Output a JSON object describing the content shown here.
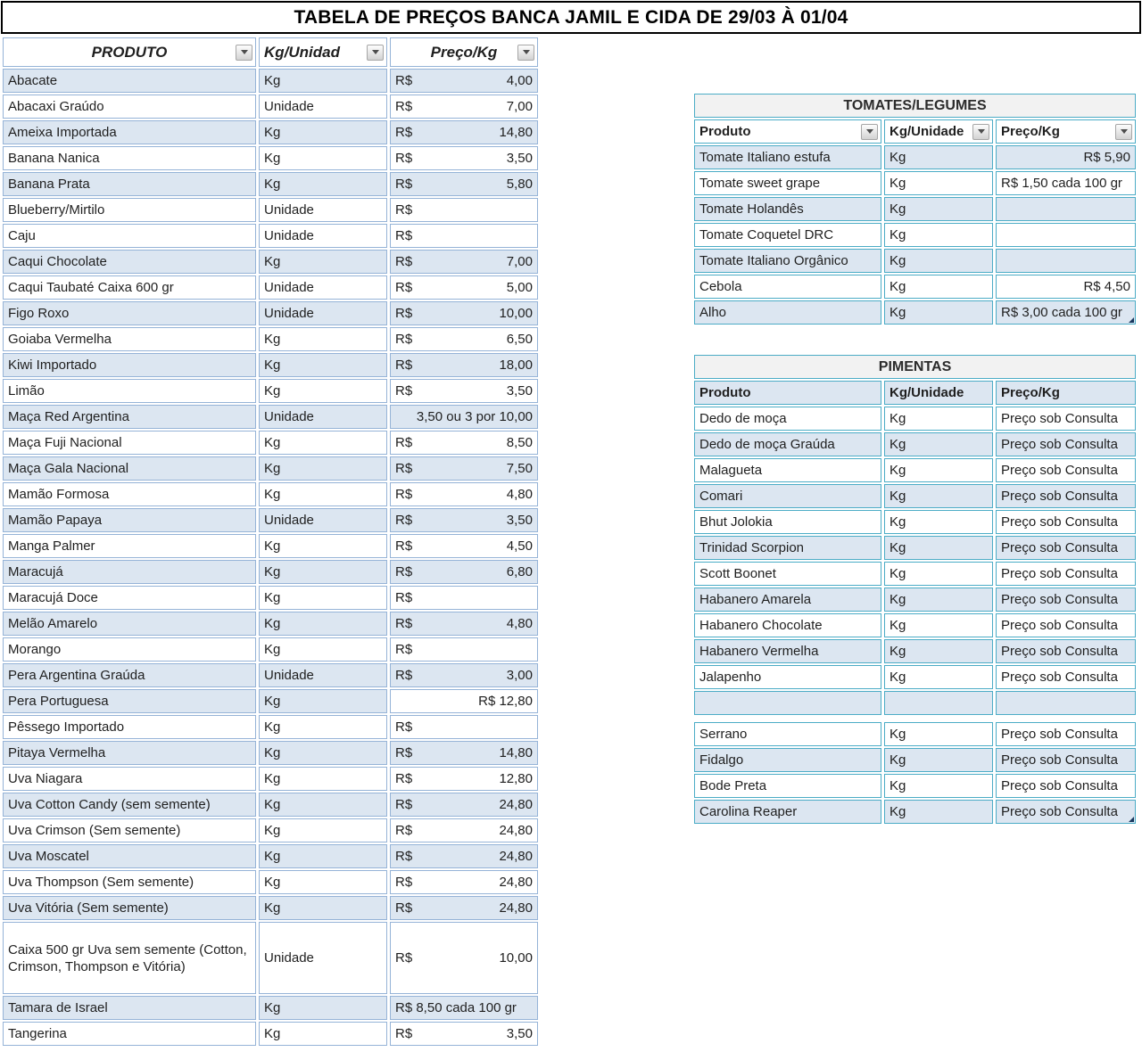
{
  "title": "TABELA DE PREÇOS BANCA JAMIL E CIDA DE 29/03 À 01/04",
  "colors": {
    "band_fill": "#DCE6F1",
    "main_border": "#95B3D7",
    "right_border": "#4BACC6",
    "section_title_bg": "#F2F2F2",
    "title_border": "#000000"
  },
  "main_table": {
    "headers": {
      "product": "PRODUTO",
      "unit": "Kg/Unidad",
      "price": "Preço/Kg"
    },
    "rows": [
      {
        "product": "Abacate",
        "unit": "Kg",
        "cur": "R$",
        "val": "4,00",
        "shaded": true
      },
      {
        "product": "Abacaxi Graúdo",
        "unit": "Unidade",
        "cur": "R$",
        "val": "7,00",
        "shaded": false
      },
      {
        "product": "Ameixa Importada",
        "unit": "Kg",
        "cur": "R$",
        "val": "14,80",
        "shaded": true
      },
      {
        "product": "Banana Nanica",
        "unit": "Kg",
        "cur": "R$",
        "val": "3,50",
        "shaded": false
      },
      {
        "product": "Banana Prata",
        "unit": "Kg",
        "cur": "R$",
        "val": "5,80",
        "shaded": true
      },
      {
        "product": "Blueberry/Mirtilo",
        "unit": "Unidade",
        "cur": "R$",
        "val": "",
        "shaded": false
      },
      {
        "product": "Caju",
        "unit": "Unidade",
        "cur": "R$",
        "val": "",
        "shaded": false
      },
      {
        "product": "Caqui Chocolate",
        "unit": "Kg",
        "cur": "R$",
        "val": "7,00",
        "shaded": true
      },
      {
        "product": "Caqui Taubaté Caixa 600 gr",
        "unit": "Unidade",
        "cur": "R$",
        "val": "5,00",
        "shaded": false
      },
      {
        "product": "Figo Roxo",
        "unit": "Unidade",
        "cur": "R$",
        "val": "10,00",
        "shaded": true
      },
      {
        "product": "Goiaba Vermelha",
        "unit": "Kg",
        "cur": "R$",
        "val": "6,50",
        "shaded": false
      },
      {
        "product": "Kiwi Importado",
        "unit": "Kg",
        "cur": "R$",
        "val": "18,00",
        "shaded": true
      },
      {
        "product": "Limão",
        "unit": "Kg",
        "cur": "R$",
        "val": "3,50",
        "shaded": false
      },
      {
        "product": "Maça Red Argentina",
        "unit": "Unidade",
        "text": "3,50 ou 3 por 10,00",
        "align": "right",
        "shaded": true
      },
      {
        "product": "Maça Fuji Nacional",
        "unit": "Kg",
        "cur": "R$",
        "val": "8,50",
        "shaded": false
      },
      {
        "product": "Maça Gala Nacional",
        "unit": "Kg",
        "cur": "R$",
        "val": "7,50",
        "shaded": true
      },
      {
        "product": "Mamão Formosa",
        "unit": "Kg",
        "cur": "R$",
        "val": "4,80",
        "shaded": false
      },
      {
        "product": "Mamão Papaya",
        "unit": "Unidade",
        "cur": "R$",
        "val": "3,50",
        "shaded": true
      },
      {
        "product": "Manga Palmer",
        "unit": "Kg",
        "cur": "R$",
        "val": "4,50",
        "shaded": false
      },
      {
        "product": "Maracujá",
        "unit": "Kg",
        "cur": "R$",
        "val": "6,80",
        "shaded": true
      },
      {
        "product": "Maracujá Doce",
        "unit": "Kg",
        "cur": "R$",
        "val": "",
        "shaded": false
      },
      {
        "product": "Melão Amarelo",
        "unit": "Kg",
        "cur": "R$",
        "val": "4,80",
        "shaded": true
      },
      {
        "product": "Morango",
        "unit": "Kg",
        "cur": "R$",
        "val": "",
        "shaded": false
      },
      {
        "product": "Pera Argentina Graúda",
        "unit": "Unidade",
        "cur": "R$",
        "val": "3,00",
        "shaded": true
      },
      {
        "product": "Pera Portuguesa",
        "unit": "Kg",
        "text": "R$ 12,80",
        "align": "right",
        "shaded": true,
        "price_white": true
      },
      {
        "product": "Pêssego Importado",
        "unit": "Kg",
        "cur": "R$",
        "val": "",
        "shaded": false
      },
      {
        "product": "Pitaya Vermelha",
        "unit": "Kg",
        "cur": "R$",
        "val": "14,80",
        "shaded": true
      },
      {
        "product": "Uva Niagara",
        "unit": "Kg",
        "cur": "R$",
        "val": "12,80",
        "shaded": false
      },
      {
        "product": "Uva Cotton Candy (sem semente)",
        "unit": "Kg",
        "cur": "R$",
        "val": "24,80",
        "shaded": true
      },
      {
        "product": "Uva Crimson (Sem semente)",
        "unit": "Kg",
        "cur": "R$",
        "val": "24,80",
        "shaded": false
      },
      {
        "product": "Uva Moscatel",
        "unit": "Kg",
        "cur": "R$",
        "val": "24,80",
        "shaded": true
      },
      {
        "product": "Uva Thompson (Sem semente)",
        "unit": "Kg",
        "cur": "R$",
        "val": "24,80",
        "shaded": false
      },
      {
        "product": "Uva Vitória (Sem semente)",
        "unit": "Kg",
        "cur": "R$",
        "val": "24,80",
        "shaded": true
      },
      {
        "product": "Caixa 500 gr Uva sem semente (Cotton, Crimson, Thompson e Vitória)",
        "unit": "Unidade",
        "cur": "R$",
        "val": "10,00",
        "shaded": false,
        "tall": true
      },
      {
        "product": "Tamara de Israel",
        "unit": "Kg",
        "text": "R$ 8,50 cada 100 gr",
        "align": "left",
        "shaded": true
      },
      {
        "product": "Tangerina",
        "unit": "Kg",
        "cur": "R$",
        "val": "3,50",
        "shaded": false
      }
    ]
  },
  "tomates_table": {
    "title": "TOMATES/LEGUMES",
    "headers": {
      "product": "Produto",
      "unit": "Kg/Unidade",
      "price": "Preço/Kg"
    },
    "rows": [
      {
        "product": "Tomate Italiano estufa",
        "unit": "Kg",
        "text": "R$ 5,90",
        "align": "right",
        "shaded": true
      },
      {
        "product": "Tomate sweet grape",
        "unit": "Kg",
        "text": "R$ 1,50 cada 100 gr",
        "align": "left",
        "shaded": false
      },
      {
        "product": "Tomate Holandês",
        "unit": "Kg",
        "text": "",
        "align": "left",
        "shaded": true
      },
      {
        "product": "Tomate Coquetel DRC",
        "unit": "Kg",
        "text": "",
        "align": "left",
        "shaded": false
      },
      {
        "product": "Tomate Italiano Orgânico",
        "unit": "Kg",
        "text": "",
        "align": "left",
        "shaded": true
      },
      {
        "product": "Cebola",
        "unit": "Kg",
        "text": "R$ 4,50",
        "align": "right",
        "shaded": false
      },
      {
        "product": "Alho",
        "unit": "Kg",
        "text": "R$ 3,00 cada 100 gr",
        "align": "left",
        "shaded": true,
        "handle": true
      }
    ]
  },
  "pimentas_table": {
    "title": "PIMENTAS",
    "headers": {
      "product": "Produto",
      "unit": "Kg/Unidade",
      "price": "Preço/Kg"
    },
    "rows": [
      {
        "product": "Dedo de moça",
        "unit": "Kg",
        "text": "Preço sob Consulta",
        "align": "left",
        "shaded": false
      },
      {
        "product": "Dedo de moça Graúda",
        "unit": "Kg",
        "text": "Preço sob Consulta",
        "align": "left",
        "shaded": true
      },
      {
        "product": "Malagueta",
        "unit": "Kg",
        "text": "Preço sob Consulta",
        "align": "left",
        "shaded": false
      },
      {
        "product": "Comari",
        "unit": "Kg",
        "text": "Preço sob Consulta",
        "align": "left",
        "shaded": true
      },
      {
        "product": "Bhut Jolokia",
        "unit": "Kg",
        "text": "Preço sob Consulta",
        "align": "left",
        "shaded": false
      },
      {
        "product": "Trinidad Scorpion",
        "unit": "Kg",
        "text": "Preço sob Consulta",
        "align": "left",
        "shaded": true
      },
      {
        "product": "Scott Boonet",
        "unit": "Kg",
        "text": "Preço sob Consulta",
        "align": "left",
        "shaded": false
      },
      {
        "product": "Habanero Amarela",
        "unit": "Kg",
        "text": "Preço sob Consulta",
        "align": "left",
        "shaded": true
      },
      {
        "product": "Habanero Chocolate",
        "unit": "Kg",
        "text": "Preço sob Consulta",
        "align": "left",
        "shaded": false
      },
      {
        "product": "Habanero Vermelha",
        "unit": "Kg",
        "text": "Preço sob Consulta",
        "align": "left",
        "shaded": true
      },
      {
        "product": "Jalapenho",
        "unit": "Kg",
        "text": "Preço sob Consulta",
        "align": "left",
        "shaded": false
      },
      {
        "product": "",
        "unit": "",
        "text": "",
        "align": "left",
        "shaded": true
      },
      {
        "gap": true
      },
      {
        "product": "Serrano",
        "unit": "Kg",
        "text": "Preço sob Consulta",
        "align": "left",
        "shaded": false
      },
      {
        "product": "Fidalgo",
        "unit": "Kg",
        "text": "Preço sob Consulta",
        "align": "left",
        "shaded": true
      },
      {
        "product": "Bode Preta",
        "unit": "Kg",
        "text": "Preço sob Consulta",
        "align": "left",
        "shaded": false
      },
      {
        "product": "Carolina Reaper",
        "unit": "Kg",
        "text": "Preço sob Consulta",
        "align": "left",
        "shaded": true,
        "handle": true
      }
    ]
  }
}
